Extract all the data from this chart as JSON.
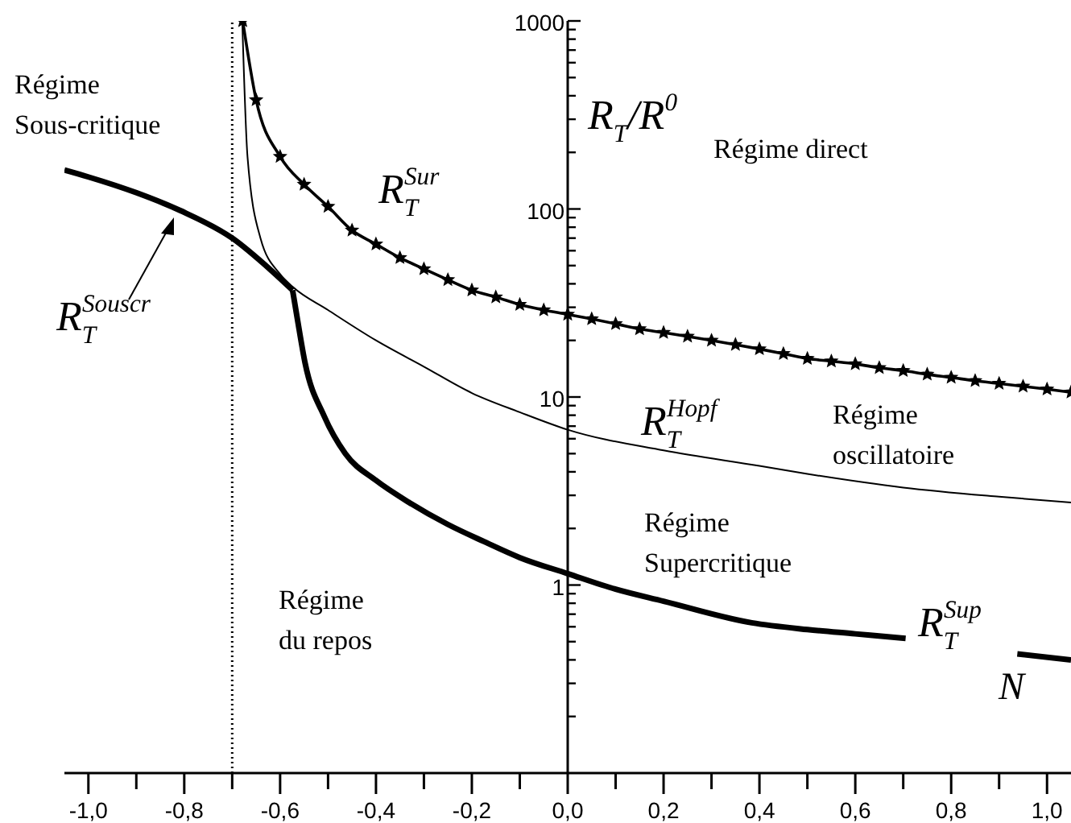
{
  "chart_data": {
    "type": "line",
    "xlabel": "N",
    "ylabel": "R$_{T}$/R$^{0}$",
    "log": "y",
    "line_style": "solid",
    "xlim": [
      -1.05,
      1.05
    ],
    "xticks": [
      {
        "value": -1.0,
        "label": "-1,0"
      },
      {
        "value": -0.9,
        "label": null
      },
      {
        "value": -0.8,
        "label": "-0,8"
      },
      {
        "value": -0.7,
        "label": null
      },
      {
        "value": -0.6,
        "label": "-0,6"
      },
      {
        "value": -0.5,
        "label": null
      },
      {
        "value": -0.4,
        "label": "-0,4"
      },
      {
        "value": -0.3,
        "label": null
      },
      {
        "value": -0.2,
        "label": "-0,2"
      },
      {
        "value": -0.1,
        "label": null
      },
      {
        "value": 0,
        "label": "0,0"
      },
      {
        "value": 0.1,
        "label": null
      },
      {
        "value": 0.2,
        "label": "0,2"
      },
      {
        "value": 0.3,
        "label": null
      },
      {
        "value": 0.4,
        "label": "0,4"
      },
      {
        "value": 0.5,
        "label": null
      },
      {
        "value": 0.6,
        "label": "0,6"
      },
      {
        "value": 0.7,
        "label": null
      },
      {
        "value": 0.8,
        "label": "0,8"
      },
      {
        "value": 0.9,
        "label": null
      },
      {
        "value": 1.0,
        "label": "1,0"
      }
    ],
    "ylim": [
      0.1,
      1000
    ],
    "yticks": [
      {
        "value": 0.2,
        "label": null
      },
      {
        "value": 0.3,
        "label": null
      },
      {
        "value": 0.4,
        "label": null
      },
      {
        "value": 0.5,
        "label": null
      },
      {
        "value": 0.6,
        "label": null
      },
      {
        "value": 0.7,
        "label": null
      },
      {
        "value": 0.8,
        "label": null
      },
      {
        "value": 0.9,
        "label": null
      },
      1,
      {
        "value": 2,
        "label": null
      },
      {
        "value": 3,
        "label": null
      },
      {
        "value": 4,
        "label": null
      },
      {
        "value": 5,
        "label": null
      },
      {
        "value": 6,
        "label": null
      },
      {
        "value": 7,
        "label": null
      },
      {
        "value": 8,
        "label": null
      },
      {
        "value": 9,
        "label": null
      },
      10,
      {
        "value": 20,
        "label": null
      },
      {
        "value": 30,
        "label": null
      },
      {
        "value": 40,
        "label": null
      },
      {
        "value": 50,
        "label": null
      },
      {
        "value": 60,
        "label": null
      },
      {
        "value": 70,
        "label": null
      },
      {
        "value": 80,
        "label": null
      },
      {
        "value": 90,
        "label": null
      },
      100,
      {
        "value": 200,
        "label": null
      },
      {
        "value": 300,
        "label": null
      },
      {
        "value": 400,
        "label": null
      },
      {
        "value": 500,
        "label": null
      },
      {
        "value": 600,
        "label": null
      },
      {
        "value": 700,
        "label": null
      },
      {
        "value": 800,
        "label": null
      },
      {
        "value": 900,
        "label": null
      },
      1000
    ],
    "series": [
      {
        "name": "R$_{T}$$^{Sur}$",
        "color": "#000000",
        "marker": "star",
        "x": [
          -0.678,
          -0.65,
          -0.6,
          -0.55,
          -0.5,
          -0.45,
          -0.4,
          -0.35,
          -0.3,
          -0.25,
          -0.2,
          -0.15,
          -0.1,
          -0.05,
          0,
          0.05,
          0.1,
          0.15,
          0.2,
          0.25,
          0.3,
          0.35,
          0.4,
          0.45,
          0.5,
          0.55,
          0.6,
          0.65,
          0.7,
          0.75,
          0.8,
          0.85,
          0.9,
          0.95,
          1.0,
          1.05
        ],
        "values": [
          1000,
          380,
          190,
          135,
          103,
          77,
          65,
          55,
          48,
          42,
          37,
          34,
          31,
          29,
          27.5,
          26,
          24.5,
          23,
          22,
          21,
          20,
          19,
          18,
          17,
          16,
          15.5,
          15,
          14.3,
          13.8,
          13.2,
          12.7,
          12.2,
          11.8,
          11.4,
          11,
          10.6
        ]
      },
      {
        "name": "R$_{T}$$^{Hopf}$",
        "color": "#000000",
        "marker": "none",
        "x": [
          -0.679,
          -0.668,
          -0.641,
          -0.6,
          -0.574,
          -0.5,
          -0.4,
          -0.3,
          -0.2,
          -0.1,
          0,
          0.2,
          0.4,
          0.5,
          0.7,
          0.9,
          1.05
        ],
        "values": [
          1000,
          189,
          70,
          45,
          38.6,
          29,
          20,
          14.5,
          10.5,
          8.3,
          6.7,
          5.2,
          4.3,
          3.9,
          3.3,
          2.95,
          2.75
        ]
      },
      {
        "name": "R$_{T}$$^{Souscr}$",
        "color": "#000000",
        "marker": "none",
        "x": [
          -1.05,
          -1.0,
          -0.9,
          -0.808,
          -0.7,
          -0.618,
          -0.574
        ],
        "values": [
          161,
          148,
          122,
          98,
          70,
          47,
          37
        ]
      },
      {
        "name": "R$_{T}$$^{Sup}$",
        "color": "#000000",
        "marker": "none",
        "x": [
          -0.574,
          -0.564,
          -0.548,
          -0.508,
          -0.464,
          -0.4,
          -0.331,
          -0.25,
          -0.174,
          -0.1,
          0,
          0.1,
          0.2,
          0.384,
          0.5,
          0.6,
          0.705,
          0.82,
          0.938,
          1.05
        ],
        "values": [
          37,
          26,
          15.2,
          7.9,
          5,
          3.6,
          2.75,
          2.1,
          1.7,
          1.4,
          1.15,
          0.95,
          0.82,
          0.63,
          0.58,
          0.55,
          0.52,
          null,
          0.43,
          0.4
        ]
      }
    ],
    "ref_lines": [
      {
        "axis": "x",
        "value": -0.7,
        "label": null,
        "line_style": "dotted",
        "color": "#000000"
      }
    ],
    "annotations": [
      "Régime\nSous-critique",
      "Régime direct",
      "Régime\noscillatoire",
      "Régime\nSupercritique",
      "Régime\ndu repos"
    ]
  }
}
